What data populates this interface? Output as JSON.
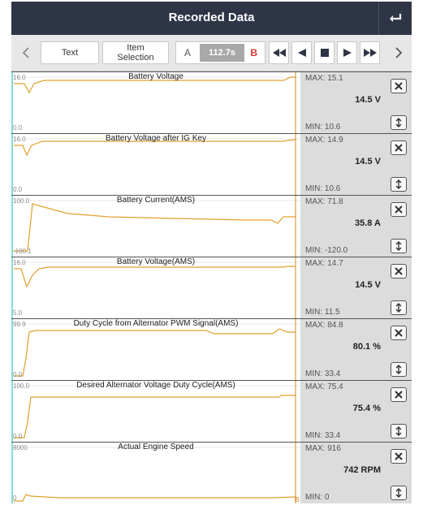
{
  "header": {
    "title": "Recorded Data"
  },
  "toolbar": {
    "text_label": "Text",
    "item_selection_label": "Item\nSelection",
    "marker_a": "A",
    "time": "112.7s",
    "marker_b": "B"
  },
  "colors": {
    "trace": "#e0a02c",
    "marker": "#d28a1e",
    "axis": "#2fc6c6",
    "header_bg": "#2e3546",
    "panel_bg": "#dcdcdc"
  },
  "rows": [
    {
      "title": "Battery Voltage",
      "max_axis": "16.0",
      "min_axis": "0.0",
      "max": "MAX: 15.1",
      "current": "14.5 V",
      "min": "MIN: 10.6"
    },
    {
      "title": "Battery Voltage after IG Key",
      "max_axis": "16.0",
      "min_axis": "0.0",
      "max": "MAX: 14.9",
      "current": "14.5 V",
      "min": "MIN: 10.6"
    },
    {
      "title": "Battery Current(AMS)",
      "max_axis": "100.0",
      "min_axis": "-100.1",
      "max": "MAX: 71.8",
      "current": "35.8 A",
      "min": "MIN: -120.0"
    },
    {
      "title": "Battery Voltage(AMS)",
      "max_axis": "16.0",
      "min_axis": "5.0",
      "max": "MAX: 14.7",
      "current": "14.5 V",
      "min": "MIN: 11.5"
    },
    {
      "title": "Duty Cycle from Alternator PWM Signal(AMS)",
      "max_axis": "99.9",
      "min_axis": "0.0",
      "max": "MAX: 84.8",
      "current": "80.1 %",
      "min": "MIN: 33.4"
    },
    {
      "title": "Desired Alternator Voltage Duty Cycle(AMS)",
      "max_axis": "100.0",
      "min_axis": "0.0",
      "max": "MAX: 75.4",
      "current": "75.4 %",
      "min": "MIN: 33.4"
    },
    {
      "title": "Actual Engine Speed",
      "max_axis": "8000",
      "min_axis": "0",
      "max": "MAX: 916",
      "current": "742 RPM",
      "min": "MIN: 0"
    }
  ],
  "end_marker": "B"
}
